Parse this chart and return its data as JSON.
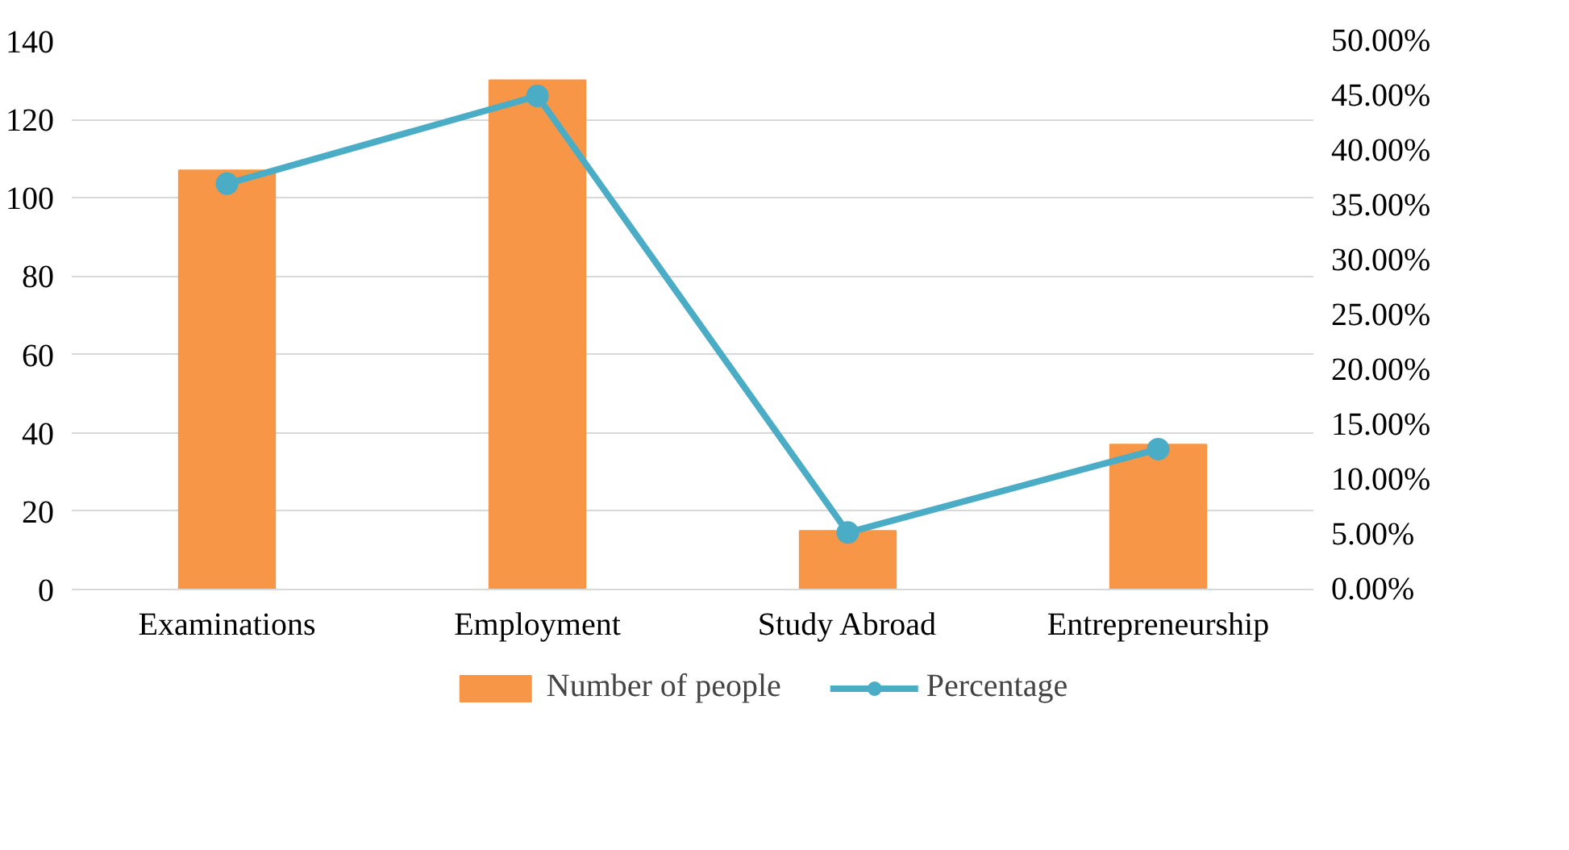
{
  "chart_data": {
    "type": "bar",
    "categories": [
      "Examinations",
      "Employment",
      "Study Abroad",
      "Entrepreneurship"
    ],
    "series": [
      {
        "name": "Number of people",
        "color": "#f79646",
        "values": [
          107,
          130,
          15,
          37
        ]
      },
      {
        "name": "Percentage",
        "type": "line",
        "axis": "y2",
        "color": "#4bacc6",
        "marker": "circle",
        "values": [
          37,
          45,
          5.2,
          12.8
        ]
      }
    ],
    "ylim": [
      0,
      140
    ],
    "yticks": [
      0,
      20,
      40,
      60,
      80,
      100,
      120,
      140
    ],
    "y2lim": [
      0,
      50
    ],
    "y2ticks": [
      {
        "value": 0,
        "label": "0.00%"
      },
      {
        "value": 5,
        "label": "5.00%"
      },
      {
        "value": 10,
        "label": "10.00%"
      },
      {
        "value": 15,
        "label": "15.00%"
      },
      {
        "value": 20,
        "label": "20.00%"
      },
      {
        "value": 25,
        "label": "25.00%"
      },
      {
        "value": 30,
        "label": "30.00%"
      },
      {
        "value": 35,
        "label": "35.00%"
      },
      {
        "value": 40,
        "label": "40.00%"
      },
      {
        "value": 45,
        "label": "45.00%"
      },
      {
        "value": 50,
        "label": "50.00%"
      }
    ],
    "grid": "y",
    "legend": "bottom"
  }
}
